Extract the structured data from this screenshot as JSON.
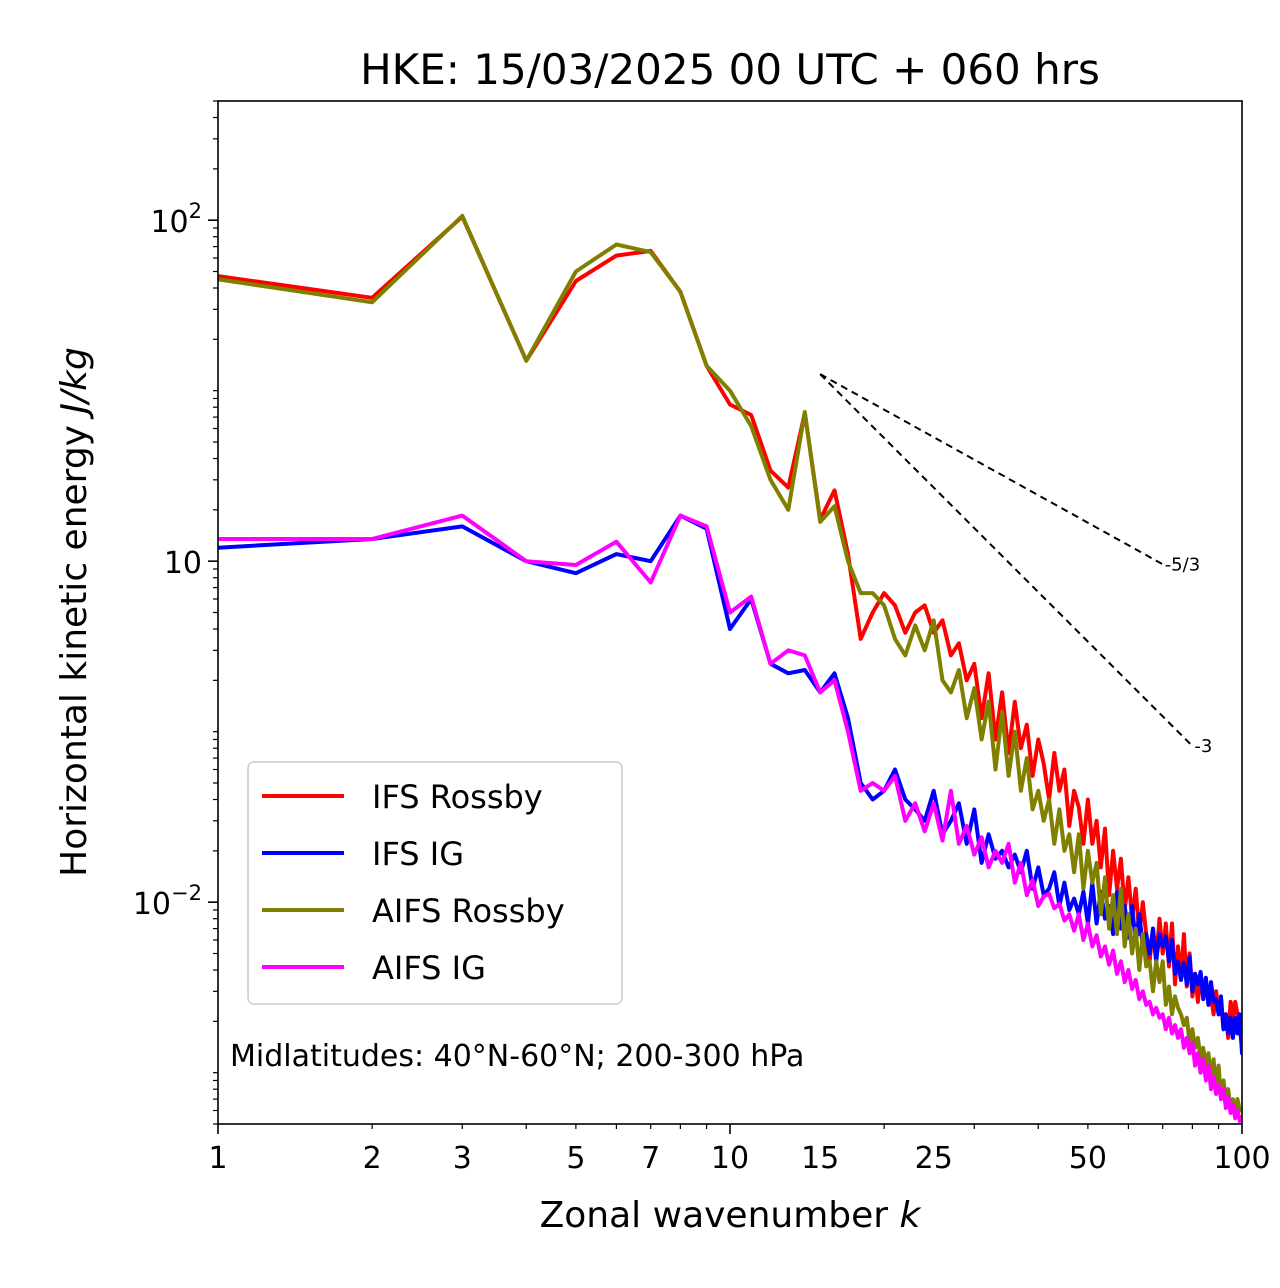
{
  "chart_data": {
    "type": "line",
    "title": "HKE: 15/03/2025 00 UTC + 060 hrs",
    "xlabel": "Zonal wavenumber ",
    "xlabel_var": "k",
    "ylabel": "Horizontal kinetic energy ",
    "ylabel_units": "J/kg",
    "xscale": "log",
    "yscale": "log",
    "xlim": [
      1,
      100
    ],
    "ylim": [
      0.0005,
      500
    ],
    "x_ticks": [
      "1",
      "2",
      "3",
      "5",
      "7",
      "10",
      "15",
      "25",
      "50",
      "100"
    ],
    "y_ticks": [
      {
        "base": "10",
        "exp": "2"
      },
      {
        "base": "10",
        "exp": ""
      },
      {
        "base": "10",
        "exp": "−2"
      }
    ],
    "annotation": "Midlatitudes: 40°N-60°N; 200-300 hPa",
    "reference_slopes": [
      {
        "label": "-5/3",
        "slope": -1.6667,
        "x_start": 15,
        "x_end": 70,
        "y_start": 12.5
      },
      {
        "label": "-3",
        "slope": -3,
        "x_start": 15,
        "x_end": 80,
        "y_start": 12.5
      }
    ],
    "legend_position": "lower-left",
    "series": [
      {
        "name": "IFS Rossby",
        "color": "#ff0000",
        "x": [
          1,
          2,
          3,
          4,
          5,
          6,
          7,
          8,
          9,
          10,
          11,
          12,
          13,
          14,
          15,
          16,
          17,
          18,
          19,
          20,
          21,
          22,
          23,
          24,
          25,
          26,
          27,
          28,
          29,
          30,
          31,
          32,
          33,
          34,
          35,
          36,
          37,
          38,
          39,
          40,
          41,
          42,
          43,
          44,
          45,
          46,
          47,
          48,
          49,
          50,
          51,
          52,
          53,
          54,
          55,
          56,
          57,
          58,
          59,
          60,
          61,
          62,
          63,
          64,
          65,
          66,
          67,
          68,
          69,
          70,
          71,
          72,
          73,
          74,
          75,
          76,
          77,
          78,
          79,
          80,
          81,
          82,
          83,
          84,
          85,
          86,
          87,
          88,
          89,
          90,
          91,
          92,
          93,
          94,
          95,
          96,
          97,
          98,
          99,
          100
        ],
        "y": [
          47,
          35,
          105,
          15,
          44,
          62,
          66,
          38,
          14,
          8.3,
          7.2,
          3.4,
          2.7,
          7.4,
          1.75,
          2.6,
          1.1,
          0.35,
          0.5,
          0.65,
          0.55,
          0.38,
          0.5,
          0.55,
          0.38,
          0.45,
          0.28,
          0.33,
          0.2,
          0.25,
          0.12,
          0.22,
          0.09,
          0.17,
          0.075,
          0.15,
          0.08,
          0.11,
          0.055,
          0.09,
          0.065,
          0.04,
          0.075,
          0.045,
          0.06,
          0.028,
          0.045,
          0.036,
          0.022,
          0.04,
          0.022,
          0.03,
          0.016,
          0.027,
          0.011,
          0.02,
          0.012,
          0.018,
          0.009,
          0.014,
          0.008,
          0.012,
          0.0065,
          0.01,
          0.0065,
          0.0045,
          0.007,
          0.0045,
          0.008,
          0.005,
          0.0075,
          0.0042,
          0.0075,
          0.0033,
          0.0055,
          0.0035,
          0.0065,
          0.0032,
          0.005,
          0.0028,
          0.0038,
          0.0026,
          0.0038,
          0.003,
          0.0032,
          0.0025,
          0.0028,
          0.0022,
          0.003,
          0.0022,
          0.0026,
          0.0018,
          0.0022,
          0.0016,
          0.0026,
          0.0021,
          0.0026,
          0.0022,
          0.0018,
          0.0014
        ]
      },
      {
        "name": "IFS IG",
        "color": "#0000ff",
        "x": [
          1,
          2,
          3,
          4,
          5,
          6,
          7,
          8,
          9,
          10,
          11,
          12,
          13,
          14,
          15,
          16,
          17,
          18,
          19,
          20,
          21,
          22,
          23,
          24,
          25,
          26,
          27,
          28,
          29,
          30,
          31,
          32,
          33,
          34,
          35,
          36,
          37,
          38,
          39,
          40,
          41,
          42,
          43,
          44,
          45,
          46,
          47,
          48,
          49,
          50,
          51,
          52,
          53,
          54,
          55,
          56,
          57,
          58,
          59,
          60,
          61,
          62,
          63,
          64,
          65,
          66,
          67,
          68,
          69,
          70,
          71,
          72,
          73,
          74,
          75,
          76,
          77,
          78,
          79,
          80,
          81,
          82,
          83,
          84,
          85,
          86,
          87,
          88,
          89,
          90,
          91,
          92,
          93,
          94,
          95,
          96,
          97,
          98,
          99,
          100
        ],
        "y": [
          1.2,
          1.35,
          1.6,
          1.0,
          0.85,
          1.1,
          1.0,
          1.85,
          1.55,
          0.4,
          0.6,
          0.25,
          0.22,
          0.23,
          0.17,
          0.22,
          0.12,
          0.05,
          0.04,
          0.045,
          0.06,
          0.04,
          0.035,
          0.03,
          0.045,
          0.025,
          0.03,
          0.038,
          0.022,
          0.035,
          0.017,
          0.025,
          0.018,
          0.02,
          0.016,
          0.019,
          0.015,
          0.02,
          0.012,
          0.016,
          0.011,
          0.012,
          0.015,
          0.0095,
          0.013,
          0.009,
          0.0105,
          0.0085,
          0.0115,
          0.0075,
          0.013,
          0.0075,
          0.0115,
          0.008,
          0.0095,
          0.0065,
          0.0115,
          0.007,
          0.0095,
          0.0062,
          0.0095,
          0.0058,
          0.0085,
          0.0055,
          0.0065,
          0.005,
          0.007,
          0.0045,
          0.0065,
          0.0055,
          0.0063,
          0.0045,
          0.006,
          0.0038,
          0.0045,
          0.0035,
          0.0044,
          0.0033,
          0.0048,
          0.003,
          0.0038,
          0.0033,
          0.0039,
          0.0027,
          0.0036,
          0.0025,
          0.0034,
          0.0026,
          0.0027,
          0.0022,
          0.0028,
          0.0018,
          0.0022,
          0.0017,
          0.0021,
          0.0016,
          0.0021,
          0.0017,
          0.0022,
          0.0013
        ]
      },
      {
        "name": "AIFS Rossby",
        "color": "#808000",
        "x": [
          1,
          2,
          3,
          4,
          5,
          6,
          7,
          8,
          9,
          10,
          11,
          12,
          13,
          14,
          15,
          16,
          17,
          18,
          19,
          20,
          21,
          22,
          23,
          24,
          25,
          26,
          27,
          28,
          29,
          30,
          31,
          32,
          33,
          34,
          35,
          36,
          37,
          38,
          39,
          40,
          41,
          42,
          43,
          44,
          45,
          46,
          47,
          48,
          49,
          50,
          51,
          52,
          53,
          54,
          55,
          56,
          57,
          58,
          59,
          60,
          61,
          62,
          63,
          64,
          65,
          66,
          67,
          68,
          69,
          70,
          71,
          72,
          73,
          74,
          75,
          76,
          77,
          78,
          79,
          80,
          81,
          82,
          83,
          84,
          85,
          86,
          87,
          88,
          89,
          90,
          91,
          92,
          93,
          94,
          95,
          96,
          97,
          98,
          99,
          100
        ],
        "y": [
          45,
          33,
          106,
          15,
          50,
          72,
          65,
          38,
          14,
          10,
          6.2,
          3.0,
          2.0,
          7.5,
          1.7,
          2.1,
          1.0,
          0.65,
          0.65,
          0.55,
          0.35,
          0.28,
          0.42,
          0.3,
          0.45,
          0.2,
          0.17,
          0.23,
          0.12,
          0.18,
          0.09,
          0.15,
          0.06,
          0.13,
          0.055,
          0.1,
          0.045,
          0.07,
          0.035,
          0.045,
          0.03,
          0.04,
          0.022,
          0.035,
          0.02,
          0.025,
          0.015,
          0.025,
          0.012,
          0.02,
          0.013,
          0.017,
          0.0085,
          0.014,
          0.007,
          0.011,
          0.0065,
          0.012,
          0.0055,
          0.0085,
          0.005,
          0.007,
          0.004,
          0.0065,
          0.0042,
          0.0045,
          0.003,
          0.0045,
          0.0034,
          0.0045,
          0.0025,
          0.0032,
          0.0022,
          0.0028,
          0.0024,
          0.0022,
          0.0019,
          0.0021,
          0.0015,
          0.0018,
          0.0014,
          0.0016,
          0.0012,
          0.0014,
          0.0011,
          0.0013,
          0.0009,
          0.0012,
          0.0008,
          0.0011,
          0.0007,
          0.0009,
          0.0007,
          0.0008,
          0.0006,
          0.0007,
          0.0006,
          0.0007,
          0.0006,
          0.0006
        ]
      },
      {
        "name": "AIFS IG",
        "color": "#ff00ff",
        "x": [
          1,
          2,
          3,
          4,
          5,
          6,
          7,
          8,
          9,
          10,
          11,
          12,
          13,
          14,
          15,
          16,
          17,
          18,
          19,
          20,
          21,
          22,
          23,
          24,
          25,
          26,
          27,
          28,
          29,
          30,
          31,
          32,
          33,
          34,
          35,
          36,
          37,
          38,
          39,
          40,
          41,
          42,
          43,
          44,
          45,
          46,
          47,
          48,
          49,
          50,
          51,
          52,
          53,
          54,
          55,
          56,
          57,
          58,
          59,
          60,
          61,
          62,
          63,
          64,
          65,
          66,
          67,
          68,
          69,
          70,
          71,
          72,
          73,
          74,
          75,
          76,
          77,
          78,
          79,
          80,
          81,
          82,
          83,
          84,
          85,
          86,
          87,
          88,
          89,
          90,
          91,
          92,
          93,
          94,
          95,
          96,
          97,
          98,
          99,
          100
        ],
        "y": [
          1.35,
          1.35,
          1.85,
          1.0,
          0.95,
          1.3,
          0.75,
          1.85,
          1.6,
          0.5,
          0.62,
          0.25,
          0.3,
          0.28,
          0.17,
          0.2,
          0.1,
          0.045,
          0.05,
          0.045,
          0.055,
          0.03,
          0.038,
          0.026,
          0.038,
          0.023,
          0.045,
          0.022,
          0.028,
          0.019,
          0.024,
          0.016,
          0.02,
          0.017,
          0.022,
          0.013,
          0.017,
          0.011,
          0.0135,
          0.0095,
          0.0108,
          0.0112,
          0.0092,
          0.0098,
          0.0078,
          0.0085,
          0.0068,
          0.0085,
          0.006,
          0.0075,
          0.0055,
          0.0064,
          0.0048,
          0.0055,
          0.0043,
          0.0052,
          0.0038,
          0.0045,
          0.0034,
          0.004,
          0.0031,
          0.0035,
          0.0027,
          0.003,
          0.0025,
          0.0026,
          0.0022,
          0.0024,
          0.0021,
          0.0022,
          0.0018,
          0.0021,
          0.0017,
          0.0019,
          0.0016,
          0.0018,
          0.0014,
          0.0016,
          0.0013,
          0.0015,
          0.0011,
          0.0013,
          0.001,
          0.0012,
          0.0009,
          0.0011,
          0.0008,
          0.00095,
          0.00075,
          0.00085,
          0.0007,
          0.0008,
          0.00062,
          0.00072,
          0.00058,
          0.00065,
          0.00054,
          0.0006,
          0.00052,
          0.00055
        ]
      }
    ]
  }
}
